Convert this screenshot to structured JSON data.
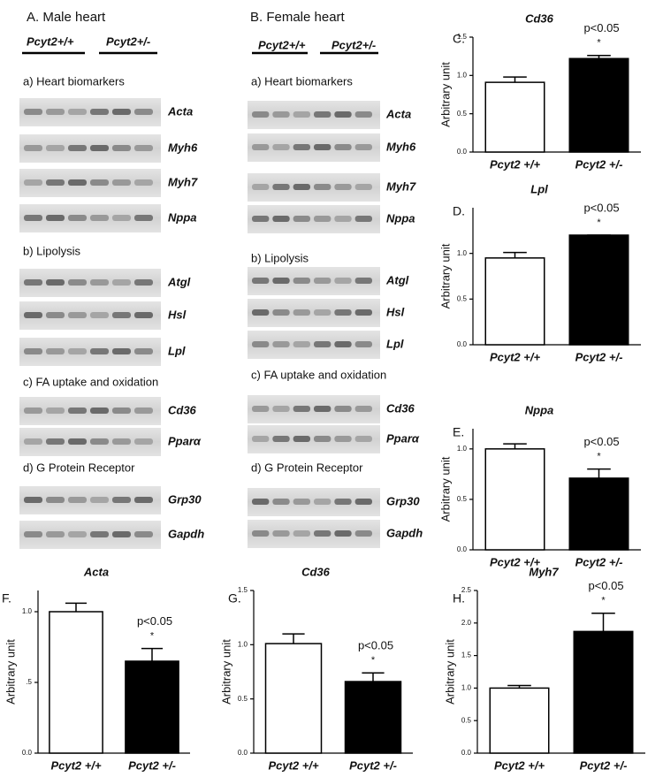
{
  "panels": [
    {
      "title": "A. Male heart",
      "genotypes": [
        "Pcyt2+/+",
        "Pcyt2+/-"
      ],
      "sections": [
        {
          "title": "a) Heart  biomarkers",
          "genes": [
            "Acta",
            "Myh6",
            "Myh7",
            "Nppa"
          ]
        },
        {
          "title": "b) Lipolysis",
          "genes": [
            "Atgl",
            "Hsl",
            "Lpl"
          ]
        },
        {
          "title": "c) FA uptake and oxidation",
          "genes": [
            "Cd36",
            "Pparα"
          ]
        },
        {
          "title": "d) G Protein Receptor",
          "genes": [
            "Grp30",
            "Gapdh"
          ]
        }
      ]
    },
    {
      "title": "B. Female heart",
      "genotypes": [
        "Pcyt2+/+",
        "Pcyt2+/-"
      ],
      "sections": [
        {
          "title": "a) Heart  biomarkers",
          "genes": [
            "Acta",
            "Myh6",
            "Myh7",
            "Nppa"
          ]
        },
        {
          "title": "b) Lipolysis",
          "genes": [
            "Atgl",
            "Hsl",
            "Lpl"
          ]
        },
        {
          "title": "c) FA uptake and oxidation",
          "genes": [
            "Cd36",
            "Pparα"
          ]
        },
        {
          "title": "d) G Protein Receptor",
          "genes": [
            "Grp30",
            "Gapdh"
          ]
        }
      ]
    }
  ],
  "chart_data": [
    {
      "type": "bar",
      "panel": "C.",
      "title": "Cd36",
      "ylabel": "Arbitrary unit",
      "categories": [
        "Pcyt2 +/+",
        "Pcyt2 +/-"
      ],
      "values": [
        0.91,
        1.22
      ],
      "errors": [
        0.07,
        0.04
      ],
      "colors": [
        "#ffffff",
        "#000000"
      ],
      "ylim": [
        0,
        1.5
      ],
      "yticks": [
        {
          "value": 0,
          "label": "0.0"
        },
        0.5,
        {
          "value": 1,
          "label": "1.0"
        },
        1.5
      ],
      "annotation": "p<0.05",
      "significance": "*"
    },
    {
      "type": "bar",
      "panel": "D.",
      "title": "Lpl",
      "ylabel": "Arbitrary unit",
      "categories": [
        "Pcyt2 +/+",
        "Pcyt2 +/-"
      ],
      "values": [
        0.95,
        1.2
      ],
      "errors": [
        0.06,
        0
      ],
      "colors": [
        "#ffffff",
        "#000000"
      ],
      "ylim": [
        0,
        1.5
      ],
      "yticks": [
        {
          "value": 0,
          "label": "0.0"
        },
        0.5,
        {
          "value": 1,
          "label": "1.0"
        }
      ],
      "annotation": "p<0.05",
      "significance": "*"
    },
    {
      "type": "bar",
      "panel": "E.",
      "title": "Nppa",
      "ylabel": "Arbitrary unit",
      "categories": [
        "Pcyt2 +/+",
        "Pcyt2 +/-"
      ],
      "values": [
        1.0,
        0.71
      ],
      "errors": [
        0.05,
        0.09
      ],
      "colors": [
        "#ffffff",
        "#000000"
      ],
      "ylim": [
        0,
        1.2
      ],
      "yticks": [
        {
          "value": 0,
          "label": "0.0"
        },
        0.5,
        {
          "value": 1,
          "label": "1.0"
        }
      ],
      "annotation": "p<0.05",
      "significance": "*"
    },
    {
      "type": "bar",
      "panel": "F.",
      "title": "Acta",
      "ylabel": "Arbitrary unit",
      "categories": [
        "Pcyt2 +/+",
        "Pcyt2 +/-"
      ],
      "values": [
        1.0,
        0.65
      ],
      "errors": [
        0.06,
        0.09
      ],
      "colors": [
        "#ffffff",
        "#000000"
      ],
      "ylim": [
        0,
        1.15
      ],
      "yticks": [
        {
          "value": 0,
          "label": "0.0"
        },
        {
          "value": 0.5,
          "label": ".5"
        },
        {
          "value": 1,
          "label": "1.0"
        }
      ],
      "annotation": "p<0.05",
      "significance": "*"
    },
    {
      "type": "bar",
      "panel": "G.",
      "title": "Cd36",
      "ylabel": "Arbitrary unit",
      "categories": [
        "Pcyt2 +/+",
        "Pcyt2 +/-"
      ],
      "values": [
        1.01,
        0.66
      ],
      "errors": [
        0.09,
        0.08
      ],
      "colors": [
        "#ffffff",
        "#000000"
      ],
      "ylim": [
        0,
        1.5
      ],
      "yticks": [
        {
          "value": 0,
          "label": "0.0"
        },
        0.5,
        {
          "value": 1,
          "label": "1.0"
        },
        1.5
      ],
      "annotation": "p<0.05",
      "significance": "*"
    },
    {
      "type": "bar",
      "panel": "H.",
      "title": "Myh7",
      "ylabel": "Arbitrary unit",
      "categories": [
        "Pcyt2 +/+",
        "Pcyt2 +/-"
      ],
      "values": [
        1.0,
        1.87
      ],
      "errors": [
        0.04,
        0.28
      ],
      "colors": [
        "#ffffff",
        "#000000"
      ],
      "ylim": [
        0,
        2.5
      ],
      "yticks": [
        {
          "value": 0,
          "label": "0.0"
        },
        0.5,
        {
          "value": 1,
          "label": "1.0"
        },
        1.5,
        {
          "value": 2,
          "label": "2.0"
        },
        2.5
      ],
      "annotation": "p<0.05",
      "significance": "*"
    }
  ]
}
